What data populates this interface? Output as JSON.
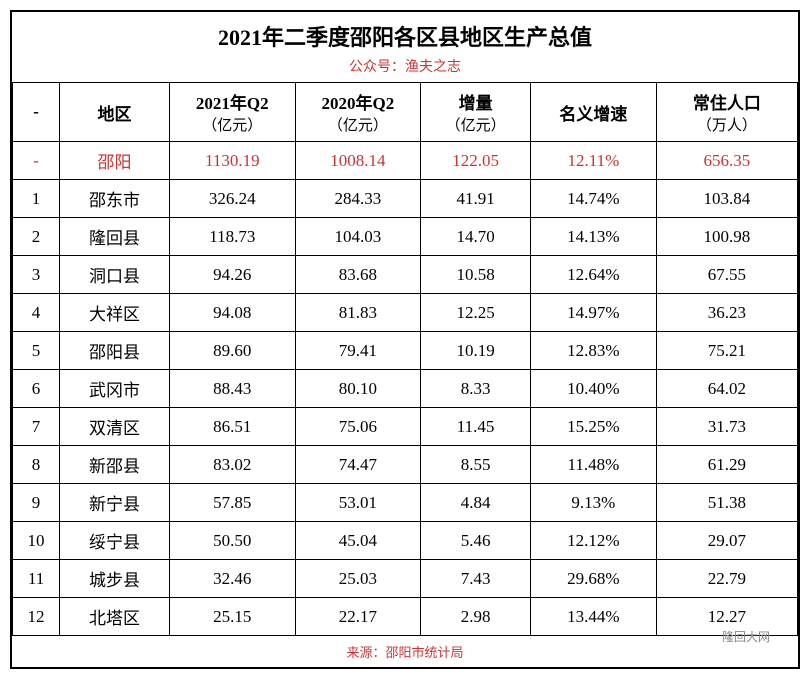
{
  "title": "2021年二季度邵阳各区县地区生产总值",
  "subtitle": "公众号：渔夫之志",
  "columns": {
    "c0": "-",
    "c1": "地区",
    "c2_line1": "2021年Q2",
    "c2_line2": "（亿元）",
    "c3_line1": "2020年Q2",
    "c3_line2": "（亿元）",
    "c4_line1": "增量",
    "c4_line2": "（亿元）",
    "c5": "名义增速",
    "c6_line1": "常住人口",
    "c6_line2": "（万人）"
  },
  "rows": [
    {
      "rank": "-",
      "region": "邵阳",
      "q2_2021": "1130.19",
      "q2_2020": "1008.14",
      "increment": "122.05",
      "growth": "12.11%",
      "population": "656.35",
      "highlight": true
    },
    {
      "rank": "1",
      "region": "邵东市",
      "q2_2021": "326.24",
      "q2_2020": "284.33",
      "increment": "41.91",
      "growth": "14.74%",
      "population": "103.84"
    },
    {
      "rank": "2",
      "region": "隆回县",
      "q2_2021": "118.73",
      "q2_2020": "104.03",
      "increment": "14.70",
      "growth": "14.13%",
      "population": "100.98"
    },
    {
      "rank": "3",
      "region": "洞口县",
      "q2_2021": "94.26",
      "q2_2020": "83.68",
      "increment": "10.58",
      "growth": "12.64%",
      "population": "67.55"
    },
    {
      "rank": "4",
      "region": "大祥区",
      "q2_2021": "94.08",
      "q2_2020": "81.83",
      "increment": "12.25",
      "growth": "14.97%",
      "population": "36.23"
    },
    {
      "rank": "5",
      "region": "邵阳县",
      "q2_2021": "89.60",
      "q2_2020": "79.41",
      "increment": "10.19",
      "growth": "12.83%",
      "population": "75.21"
    },
    {
      "rank": "6",
      "region": "武冈市",
      "q2_2021": "88.43",
      "q2_2020": "80.10",
      "increment": "8.33",
      "growth": "10.40%",
      "population": "64.02"
    },
    {
      "rank": "7",
      "region": "双清区",
      "q2_2021": "86.51",
      "q2_2020": "75.06",
      "increment": "11.45",
      "growth": "15.25%",
      "population": "31.73"
    },
    {
      "rank": "8",
      "region": "新邵县",
      "q2_2021": "83.02",
      "q2_2020": "74.47",
      "increment": "8.55",
      "growth": "11.48%",
      "population": "61.29"
    },
    {
      "rank": "9",
      "region": "新宁县",
      "q2_2021": "57.85",
      "q2_2020": "53.01",
      "increment": "4.84",
      "growth": "9.13%",
      "population": "51.38"
    },
    {
      "rank": "10",
      "region": "绥宁县",
      "q2_2021": "50.50",
      "q2_2020": "45.04",
      "increment": "5.46",
      "growth": "12.12%",
      "population": "29.07"
    },
    {
      "rank": "11",
      "region": "城步县",
      "q2_2021": "32.46",
      "q2_2020": "25.03",
      "increment": "7.43",
      "growth": "29.68%",
      "population": "22.79"
    },
    {
      "rank": "12",
      "region": "北塔区",
      "q2_2021": "25.15",
      "q2_2020": "22.17",
      "increment": "2.98",
      "growth": "13.44%",
      "population": "12.27"
    }
  ],
  "footer": "来源：邵阳市统计局",
  "watermark": "隆回大网",
  "style": {
    "highlight_color": "#cc3333",
    "border_color": "#000000",
    "title_fontsize": 22,
    "cell_fontsize": 17,
    "col_widths_pct": [
      6,
      14,
      16,
      16,
      14,
      16,
      18
    ]
  }
}
